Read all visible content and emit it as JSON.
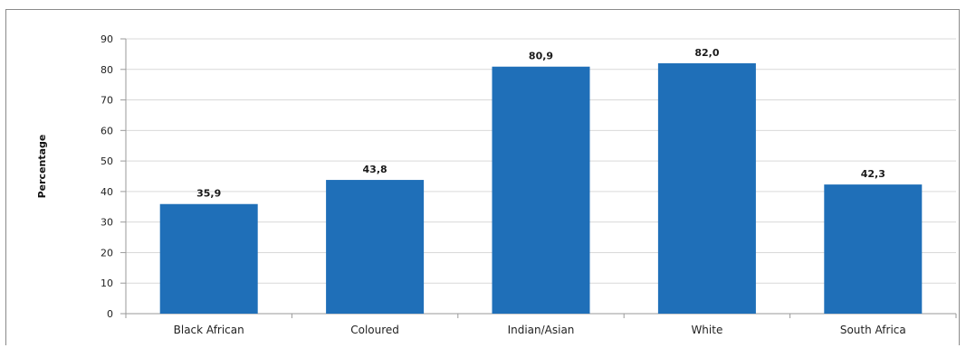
{
  "chart_data": {
    "type": "bar",
    "title": "",
    "xlabel": "",
    "ylabel": "Percentage",
    "ylim": [
      0,
      90
    ],
    "yticks": [
      0,
      10,
      20,
      30,
      40,
      50,
      60,
      70,
      80,
      90
    ],
    "grid": true,
    "categories": [
      "Black African",
      "Coloured",
      "Indian/Asian",
      "White",
      "South Africa"
    ],
    "values": [
      35.9,
      43.8,
      80.9,
      82.0,
      42.3
    ],
    "data_labels": [
      "35,9",
      "43,8",
      "80,9",
      "82,0",
      "42,3"
    ],
    "colors": {
      "bar": "#1f6fb8",
      "grid": "#d9d9d9",
      "axis": "#9a9a9a"
    }
  }
}
